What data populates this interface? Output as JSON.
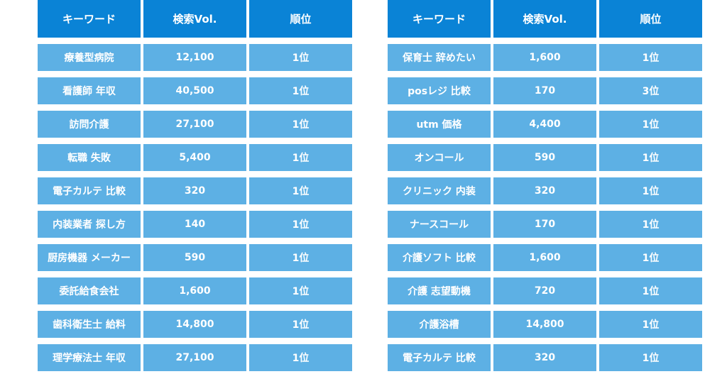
{
  "colors": {
    "header_bg": "#0a83d6",
    "cell_bg": "#5db0e4",
    "text": "#ffffff"
  },
  "tables": [
    {
      "headers": [
        "キーワード",
        "検索Vol.",
        "順位"
      ],
      "rows": [
        [
          "療養型病院",
          "12,100",
          "1位"
        ],
        [
          "看護師 年収",
          "40,500",
          "1位"
        ],
        [
          "訪問介護",
          "27,100",
          "1位"
        ],
        [
          "転職 失敗",
          "5,400",
          "1位"
        ],
        [
          "電子カルテ 比較",
          "320",
          "1位"
        ],
        [
          "内装業者 探し方",
          "140",
          "1位"
        ],
        [
          "厨房機器 メーカー",
          "590",
          "1位"
        ],
        [
          "委託給食会社",
          "1,600",
          "1位"
        ],
        [
          "歯科衛生士 給料",
          "14,800",
          "1位"
        ],
        [
          "理学療法士 年収",
          "27,100",
          "1位"
        ]
      ]
    },
    {
      "headers": [
        "キーワード",
        "検索Vol.",
        "順位"
      ],
      "rows": [
        [
          "保育士 辞めたい",
          "1,600",
          "1位"
        ],
        [
          "posレジ 比較",
          "170",
          "3位"
        ],
        [
          "utm 価格",
          "4,400",
          "1位"
        ],
        [
          "オンコール",
          "590",
          "1位"
        ],
        [
          "クリニック 内装",
          "320",
          "1位"
        ],
        [
          "ナースコール",
          "170",
          "1位"
        ],
        [
          "介護ソフト 比較",
          "1,600",
          "1位"
        ],
        [
          "介護 志望動機",
          "720",
          "1位"
        ],
        [
          "介護浴槽",
          "14,800",
          "1位"
        ],
        [
          "電子カルテ 比較",
          "320",
          "1位"
        ]
      ]
    }
  ]
}
